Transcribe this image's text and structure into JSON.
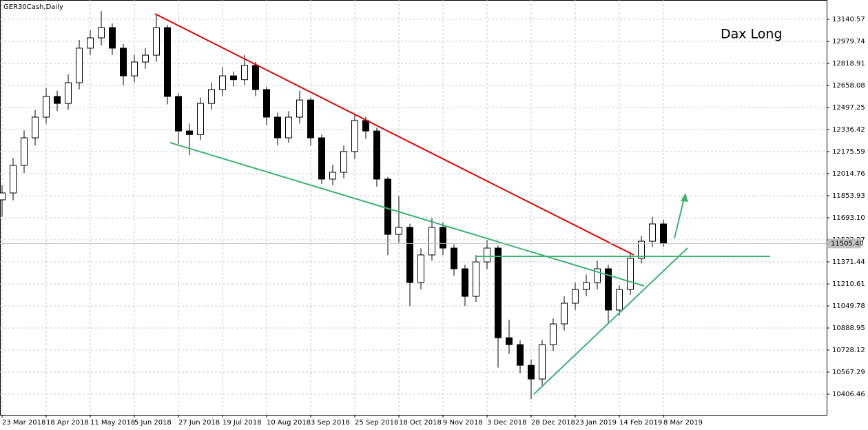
{
  "chart_data": {
    "type": "candlestick",
    "title": "GER30Cash,Daily",
    "annotation": "Dax Long",
    "categories": [
      "23 Mar 2018",
      null,
      null,
      null,
      "18 Apr 2018",
      null,
      null,
      null,
      "11 May 2018",
      null,
      null,
      null,
      "5 Jun 2018",
      null,
      null,
      null,
      "27 Jun 2018",
      null,
      null,
      null,
      "19 Jul 2018",
      null,
      null,
      null,
      "10 Aug 2018",
      null,
      null,
      null,
      "3 Sep 2018",
      null,
      null,
      null,
      "25 Sep 2018",
      null,
      null,
      null,
      "18 Oct 2018",
      null,
      null,
      null,
      "9 Nov 2018",
      null,
      null,
      null,
      "3 Dec 2018",
      null,
      null,
      null,
      "28 Dec 2018",
      null,
      null,
      null,
      "23 Jan 2019",
      null,
      null,
      null,
      "14 Feb 2019",
      null,
      null,
      null,
      "8 Mar 2019"
    ],
    "open": [
      11824,
      11874,
      12075,
      12276,
      12427,
      12578,
      12527,
      12678,
      12930,
      13005,
      13080,
      12930,
      12728,
      12829,
      12879,
      13080,
      12578,
      12326,
      12300,
      12527,
      12628,
      12728,
      12700,
      12804,
      12628,
      12427,
      12276,
      12427,
      12552,
      12276,
      11975,
      12025,
      12176,
      12402,
      12326,
      11975,
      11572,
      11623,
      11221,
      11422,
      11623,
      11472,
      11321,
      11120,
      11371,
      11472,
      10818,
      10768,
      10617,
      10517,
      10768,
      10919,
      11070,
      11170,
      11221,
      11321,
      11020,
      11170,
      11397,
      11522,
      11648
    ],
    "high": [
      11930,
      12130,
      12330,
      12480,
      12640,
      12620,
      12740,
      12990,
      13060,
      13200,
      13110,
      12960,
      12880,
      12930,
      13170,
      13100,
      12600,
      12380,
      12570,
      12680,
      12790,
      12760,
      12880,
      12830,
      12650,
      12460,
      12470,
      12620,
      12570,
      12300,
      12080,
      12220,
      12450,
      12430,
      12350,
      11990,
      11850,
      11650,
      11470,
      11690,
      11660,
      11500,
      11350,
      11420,
      11530,
      11490,
      10950,
      10800,
      10660,
      10800,
      10960,
      11120,
      11220,
      11280,
      11380,
      11350,
      11200,
      11430,
      11560,
      11700,
      11680
    ],
    "low": [
      11700,
      11820,
      12020,
      12220,
      12380,
      12470,
      12480,
      12630,
      12880,
      12950,
      12880,
      12660,
      12680,
      12780,
      12830,
      12520,
      12230,
      12150,
      12260,
      12480,
      12580,
      12650,
      12660,
      12580,
      12370,
      12220,
      12240,
      12380,
      12220,
      11940,
      11930,
      11980,
      12120,
      12270,
      11920,
      11420,
      11510,
      11050,
      11170,
      11380,
      11420,
      11270,
      11050,
      11080,
      11320,
      10600,
      10700,
      10560,
      10370,
      10470,
      10720,
      10870,
      11020,
      11120,
      11170,
      10930,
      10980,
      11130,
      11360,
      11480,
      11480
    ],
    "close": [
      11874,
      12075,
      12276,
      12427,
      12578,
      12527,
      12678,
      12930,
      13005,
      13080,
      12930,
      12728,
      12829,
      12879,
      13080,
      12578,
      12326,
      12300,
      12527,
      12628,
      12728,
      12700,
      12804,
      12628,
      12427,
      12276,
      12427,
      12552,
      12276,
      11975,
      12025,
      12176,
      12402,
      12326,
      11975,
      11572,
      11623,
      11221,
      11422,
      11623,
      11472,
      11321,
      11120,
      11371,
      11472,
      10818,
      10768,
      10617,
      10517,
      10768,
      10919,
      11070,
      11170,
      11221,
      11321,
      11020,
      11170,
      11397,
      11522,
      11648,
      11505
    ],
    "ylim": [
      10255.7,
      13281.3
    ],
    "yticks": [
      13140.57,
      12979.74,
      12818.91,
      12658.08,
      12497.25,
      12336.42,
      12175.59,
      12014.76,
      11853.93,
      {
        "value": 11693.1,
        "label": "11693.10"
      },
      11532.27,
      11371.44,
      11210.61,
      11049.78,
      10888.95,
      10728.12,
      10567.29,
      10406.46
    ],
    "current_price": {
      "value": 11505.4,
      "label": "11505.40"
    },
    "grid": true
  }
}
